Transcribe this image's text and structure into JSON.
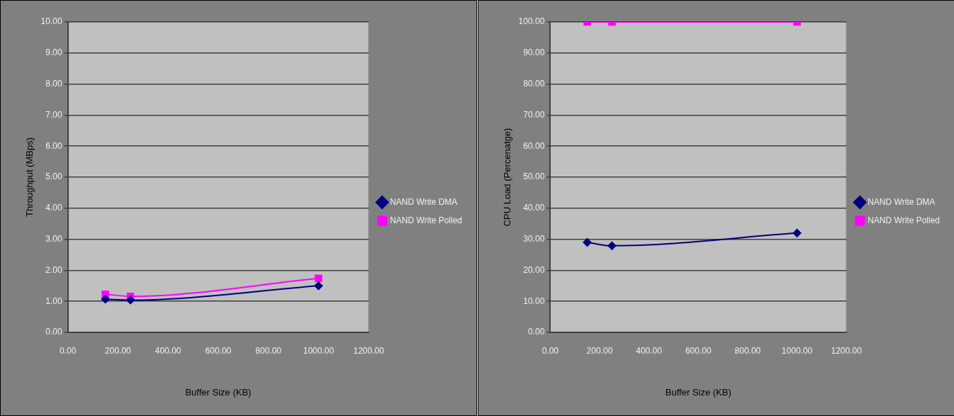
{
  "chart_data": [
    {
      "type": "line",
      "xlabel": "Buffer Size (KB)",
      "ylabel": "Throughput (MBps)",
      "x": [
        150,
        250,
        1000
      ],
      "series": [
        {
          "name": "NAND Write DMA",
          "color": "#000080",
          "values": [
            1.07,
            1.04,
            1.5
          ],
          "marker": "diamond"
        },
        {
          "name": "NAND Write Polled",
          "color": "#ff00ff",
          "values": [
            1.23,
            1.16,
            1.74
          ],
          "marker": "square"
        }
      ],
      "xlim": [
        0,
        1200
      ],
      "xticks": [
        {
          "value": 0,
          "label": "0.00"
        },
        {
          "value": 200,
          "label": "200.00"
        },
        {
          "value": 400,
          "label": "400.00"
        },
        {
          "value": 600,
          "label": "600.00"
        },
        {
          "value": 800,
          "label": "800.00"
        },
        {
          "value": 1000,
          "label": "1000.00"
        },
        {
          "value": 1200,
          "label": "1200.00"
        }
      ],
      "ylim": [
        0,
        10
      ],
      "yticks": [
        {
          "value": 0,
          "label": "0.00"
        },
        {
          "value": 1,
          "label": "1.00"
        },
        {
          "value": 2,
          "label": "2.00"
        },
        {
          "value": 3,
          "label": "3.00"
        },
        {
          "value": 4,
          "label": "4.00"
        },
        {
          "value": 5,
          "label": "5.00"
        },
        {
          "value": 6,
          "label": "6.00"
        },
        {
          "value": 7,
          "label": "7.00"
        },
        {
          "value": 8,
          "label": "8.00"
        },
        {
          "value": 9,
          "label": "9.00"
        },
        {
          "value": 10,
          "label": "10.00"
        }
      ],
      "grid": "y",
      "legend": "right",
      "line_style": "solid"
    },
    {
      "type": "line",
      "xlabel": "Buffer Size (KB)",
      "ylabel": "CPU Load (Percenatge)",
      "x": [
        150,
        250,
        1000
      ],
      "series": [
        {
          "name": "NAND Write DMA",
          "color": "#000080",
          "values": [
            29.0,
            27.9,
            32.0
          ],
          "marker": "diamond"
        },
        {
          "name": "NAND Write Polled",
          "color": "#ff00ff",
          "values": [
            100,
            100,
            100
          ],
          "marker": "square"
        }
      ],
      "xlim": [
        0,
        1200
      ],
      "xticks": [
        {
          "value": 0,
          "label": "0.00"
        },
        {
          "value": 200,
          "label": "200.00"
        },
        {
          "value": 400,
          "label": "400.00"
        },
        {
          "value": 600,
          "label": "600.00"
        },
        {
          "value": 800,
          "label": "800.00"
        },
        {
          "value": 1000,
          "label": "1000.00"
        },
        {
          "value": 1200,
          "label": "1200.00"
        }
      ],
      "ylim": [
        0,
        100
      ],
      "yticks": [
        {
          "value": 0,
          "label": "0.00"
        },
        {
          "value": 10,
          "label": "10.00"
        },
        {
          "value": 20,
          "label": "20.00"
        },
        {
          "value": 30,
          "label": "30.00"
        },
        {
          "value": 40,
          "label": "40.00"
        },
        {
          "value": 50,
          "label": "50.00"
        },
        {
          "value": 60,
          "label": "60.00"
        },
        {
          "value": 70,
          "label": "70.00"
        },
        {
          "value": 80,
          "label": "80.00"
        },
        {
          "value": 90,
          "label": "90.00"
        },
        {
          "value": 100,
          "label": "100.00"
        }
      ],
      "grid": "y",
      "legend": "right",
      "line_style": "solid"
    }
  ]
}
